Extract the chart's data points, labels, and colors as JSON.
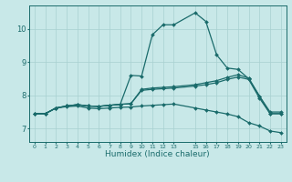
{
  "xlabel": "Humidex (Indice chaleur)",
  "background_color": "#c8e8e8",
  "grid_color": "#a8d0d0",
  "line_color": "#1a6b6b",
  "x_ticks": [
    0,
    1,
    2,
    3,
    4,
    5,
    6,
    7,
    8,
    9,
    10,
    11,
    12,
    13,
    15,
    16,
    17,
    18,
    19,
    20,
    21,
    22,
    23
  ],
  "ylim": [
    6.6,
    10.7
  ],
  "yticks": [
    7,
    8,
    9,
    10
  ],
  "xlim": [
    -0.5,
    23.5
  ],
  "series": [
    {
      "x": [
        0,
        1,
        2,
        3,
        4,
        5,
        6,
        7,
        8,
        9,
        10,
        11,
        12,
        13,
        15,
        16,
        17,
        18,
        19,
        20,
        21,
        22,
        23
      ],
      "y": [
        7.45,
        7.45,
        7.62,
        7.68,
        7.72,
        7.68,
        7.67,
        7.7,
        7.73,
        7.75,
        8.15,
        8.18,
        8.2,
        8.22,
        8.28,
        8.32,
        8.38,
        8.48,
        8.55,
        8.48,
        7.92,
        7.45,
        7.45
      ]
    },
    {
      "x": [
        0,
        1,
        2,
        3,
        4,
        5,
        6,
        7,
        8,
        9,
        10,
        11,
        12,
        13,
        15,
        16,
        17,
        18,
        19,
        20,
        21,
        22,
        23
      ],
      "y": [
        7.45,
        7.45,
        7.62,
        7.68,
        7.72,
        7.68,
        7.67,
        7.7,
        7.73,
        7.75,
        8.18,
        8.22,
        8.24,
        8.26,
        8.32,
        8.38,
        8.44,
        8.54,
        8.62,
        8.52,
        7.98,
        7.5,
        7.5
      ]
    },
    {
      "x": [
        0,
        1,
        2,
        3,
        4,
        5,
        6,
        7,
        8,
        9,
        10,
        11,
        12,
        13,
        15,
        16,
        17,
        18,
        19,
        20,
        21,
        22,
        23
      ],
      "y": [
        7.45,
        7.45,
        7.62,
        7.66,
        7.68,
        7.62,
        7.6,
        7.62,
        7.64,
        7.65,
        7.68,
        7.7,
        7.72,
        7.74,
        7.62,
        7.56,
        7.5,
        7.44,
        7.36,
        7.18,
        7.08,
        6.93,
        6.88
      ]
    },
    {
      "x": [
        0,
        1,
        2,
        3,
        4,
        5,
        6,
        7,
        8,
        9,
        10,
        11,
        12,
        13,
        15,
        16,
        17,
        18,
        19,
        20,
        21,
        22,
        23
      ],
      "y": [
        7.45,
        7.45,
        7.62,
        7.68,
        7.72,
        7.68,
        7.67,
        7.7,
        7.73,
        8.6,
        8.58,
        9.82,
        10.12,
        10.12,
        10.48,
        10.22,
        9.22,
        8.82,
        8.78,
        8.5,
        7.98,
        7.45,
        7.45
      ]
    }
  ]
}
